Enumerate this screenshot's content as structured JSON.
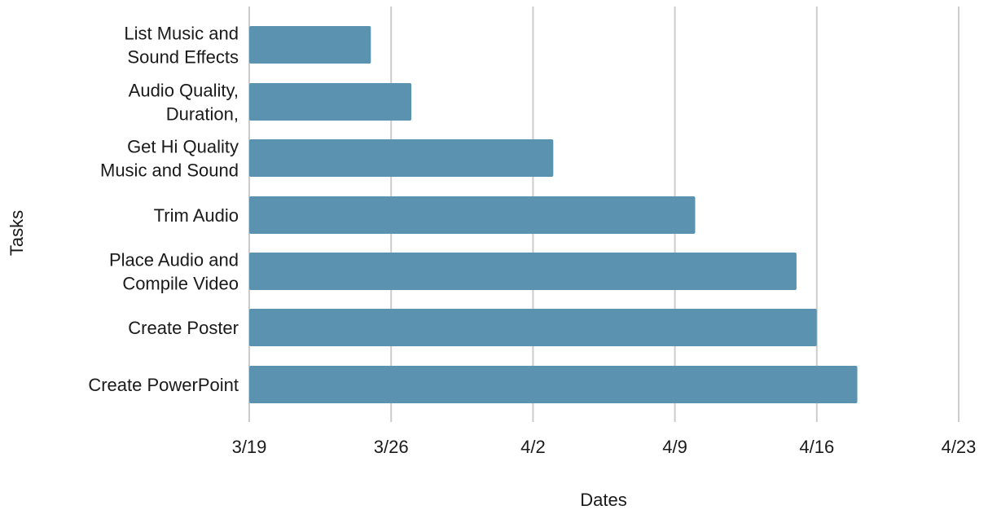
{
  "chart_data": {
    "type": "bar",
    "orientation": "horizontal",
    "title": "",
    "xlabel": "Dates",
    "ylabel": "Tasks",
    "categories": [
      [
        "List Music and",
        "Sound Effects"
      ],
      [
        "Audio Quality,",
        "Duration,"
      ],
      [
        "Get Hi Quality",
        "Music and Sound"
      ],
      [
        "Trim Audio"
      ],
      [
        "Place Audio and",
        "Compile Video"
      ],
      [
        "Create Poster"
      ],
      [
        "Create PowerPoint"
      ]
    ],
    "start": [
      "3/19",
      "3/19",
      "3/19",
      "3/19",
      "3/19",
      "3/19",
      "3/19"
    ],
    "end": [
      "3/25",
      "3/27",
      "4/3",
      "4/10",
      "4/15",
      "4/16",
      "4/18"
    ],
    "x_ticks": [
      "3/19",
      "3/26",
      "4/2",
      "4/9",
      "4/16",
      "4/23"
    ],
    "xlim": [
      "3/19",
      "4/23"
    ],
    "grid": true,
    "legend": "none",
    "colors": {
      "bar": "#5b92af",
      "grid": "#cccccc",
      "text": "#1a1a1a"
    }
  }
}
